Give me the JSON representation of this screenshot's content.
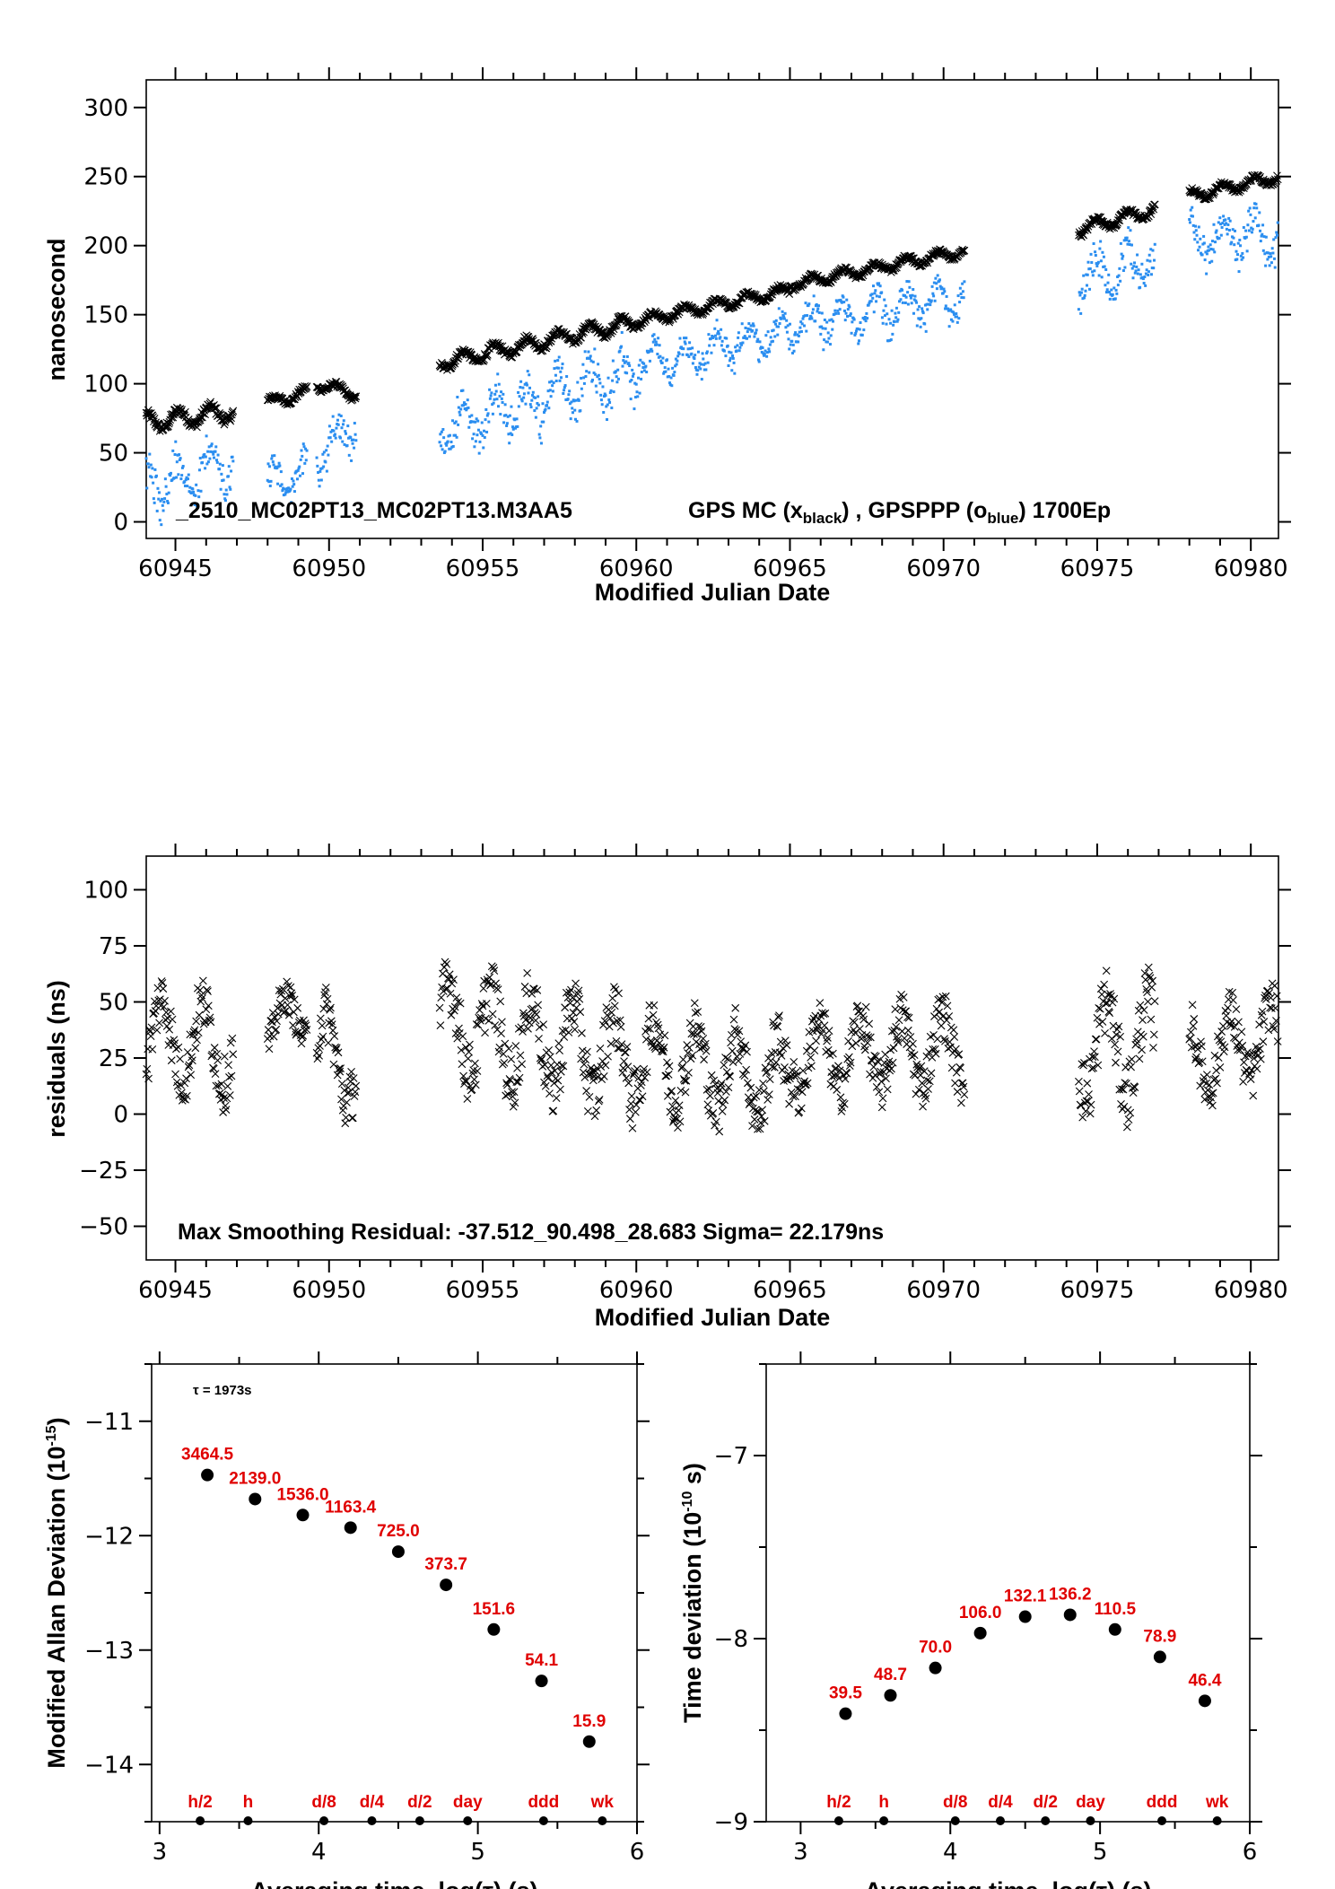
{
  "chart_data": [
    {
      "type": "scatter",
      "title": "",
      "xlabel": "Modified Julian Date",
      "ylabel": "nanosecond",
      "xlim": [
        60944.05,
        60980.9
      ],
      "ylim": [
        -12,
        320
      ],
      "xticks": [
        60945,
        60950,
        60955,
        60960,
        60965,
        60970,
        60975,
        60980
      ],
      "yticks": [
        0,
        50,
        100,
        150,
        200,
        250,
        300
      ],
      "annotation": {
        "main": "_2510_MC02PT13_MC02PT13.M3AA5",
        "legend_a": "GPS MC (x",
        "legend_a_sub": "black",
        "legend_mid": ") ,  GPSPPP (o",
        "legend_b_sub": "blue",
        "legend_end": ")  1700Ep"
      },
      "series": [
        {
          "name": "GPS MC",
          "marker": "x",
          "color": "#000000",
          "segments": [
            {
              "x0": 60944.05,
              "x1": 60946.9,
              "y0": 72,
              "y1": 80,
              "spread": 10
            },
            {
              "x0": 60948.0,
              "x1": 60949.3,
              "y0": 86,
              "y1": 94,
              "spread": 6
            },
            {
              "x0": 60949.6,
              "x1": 60950.9,
              "y0": 100,
              "y1": 92,
              "spread": 6
            },
            {
              "x0": 60953.6,
              "x1": 60960.0,
              "y0": 115,
              "y1": 145,
              "spread": 8
            },
            {
              "x0": 60960.0,
              "x1": 60965.0,
              "y0": 145,
              "y1": 168,
              "spread": 6
            },
            {
              "x0": 60965.0,
              "x1": 60970.7,
              "y0": 172,
              "y1": 196,
              "spread": 6
            },
            {
              "x0": 60974.4,
              "x1": 60976.9,
              "y0": 212,
              "y1": 226,
              "spread": 7
            },
            {
              "x0": 60978.0,
              "x1": 60980.9,
              "y0": 236,
              "y1": 250,
              "spread": 6
            }
          ]
        },
        {
          "name": "GPSPPP",
          "marker": "o",
          "color": "#2b8ef0",
          "segments": [
            {
              "x0": 60944.05,
              "x1": 60946.9,
              "y0": 35,
              "y1": 55,
              "spread": 25
            },
            {
              "x0": 60948.0,
              "x1": 60949.3,
              "y0": 35,
              "y1": 45,
              "spread": 18
            },
            {
              "x0": 60949.6,
              "x1": 60950.9,
              "y0": 55,
              "y1": 80,
              "spread": 20
            },
            {
              "x0": 60953.6,
              "x1": 60960.0,
              "y0": 75,
              "y1": 120,
              "spread": 25
            },
            {
              "x0": 60960.0,
              "x1": 60965.0,
              "y0": 120,
              "y1": 145,
              "spread": 18
            },
            {
              "x0": 60965.0,
              "x1": 60970.7,
              "y0": 150,
              "y1": 170,
              "spread": 20
            },
            {
              "x0": 60974.4,
              "x1": 60976.9,
              "y0": 185,
              "y1": 200,
              "spread": 25
            },
            {
              "x0": 60978.0,
              "x1": 60980.9,
              "y0": 215,
              "y1": 215,
              "spread": 22
            }
          ]
        }
      ]
    },
    {
      "type": "scatter",
      "title": "",
      "xlabel": "Modified Julian Date",
      "ylabel": "residuals (ns)",
      "xlim": [
        60944.05,
        60980.9
      ],
      "ylim": [
        -65,
        115
      ],
      "xticks": [
        60945,
        60950,
        60955,
        60960,
        60965,
        60970,
        60975,
        60980
      ],
      "yticks": [
        -50,
        -25,
        0,
        25,
        50,
        75,
        100
      ],
      "annotation": "Max Smoothing Residual: -37.512_90.498_28.683  Sigma= 22.179ns",
      "series": [
        {
          "name": "residuals",
          "marker": "x",
          "color": "#000000",
          "segments": [
            {
              "x0": 60944.05,
              "x1": 60946.9,
              "y0": 35,
              "y1": 30,
              "spread": 25
            },
            {
              "x0": 60948.0,
              "x1": 60949.3,
              "y0": 40,
              "y1": 45,
              "spread": 15
            },
            {
              "x0": 60949.6,
              "x1": 60950.9,
              "y0": 30,
              "y1": 20,
              "spread": 25
            },
            {
              "x0": 60953.6,
              "x1": 60960.0,
              "y0": 40,
              "y1": 25,
              "spread": 28
            },
            {
              "x0": 60960.0,
              "x1": 60965.0,
              "y0": 25,
              "y1": 15,
              "spread": 25
            },
            {
              "x0": 60965.0,
              "x1": 60970.7,
              "y0": 25,
              "y1": 30,
              "spread": 22
            },
            {
              "x0": 60974.4,
              "x1": 60976.9,
              "y0": 30,
              "y1": 30,
              "spread": 30
            },
            {
              "x0": 60978.0,
              "x1": 60980.9,
              "y0": 25,
              "y1": 35,
              "spread": 22
            }
          ]
        }
      ]
    },
    {
      "type": "scatter",
      "title": "",
      "xlabel": "Averaging time, log(τ) (s)",
      "ylabel": "Modified Allan Deviation (10",
      "ylabel_sup": "-15",
      "ylabel_end": ")",
      "xlim": [
        2.95,
        6.0
      ],
      "ylim": [
        -14.5,
        -10.5
      ],
      "xticks": [
        3,
        4,
        5,
        6
      ],
      "yticks": [
        -14,
        -13,
        -12,
        -11
      ],
      "note": "τ = 1973s",
      "x": [
        3.3,
        3.6,
        3.9,
        4.2,
        4.5,
        4.8,
        5.1,
        5.4,
        5.7
      ],
      "y": [
        -11.47,
        -11.68,
        -11.82,
        -11.93,
        -12.14,
        -12.43,
        -12.82,
        -13.27,
        -13.8
      ],
      "point_labels": [
        "3464.5",
        "2139.0",
        "1536.0",
        "1163.4",
        "725.0",
        "373.7",
        "151.6",
        "54.1",
        "15.9"
      ],
      "markers": [
        {
          "label": "h/2",
          "x": 3.255
        },
        {
          "label": "h",
          "x": 3.556
        },
        {
          "label": "d/8",
          "x": 4.033
        },
        {
          "label": "d/4",
          "x": 4.334
        },
        {
          "label": "d/2",
          "x": 4.635
        },
        {
          "label": "day",
          "x": 4.936
        },
        {
          "label": "ddd",
          "x": 5.413
        },
        {
          "label": "wk",
          "x": 5.782
        }
      ]
    },
    {
      "type": "scatter",
      "title": "",
      "xlabel": "Averaging time, log(τ) (s)",
      "ylabel": "Time deviation (10",
      "ylabel_sup": "-10",
      "ylabel_end": " s)",
      "xlim": [
        2.77,
        6.0
      ],
      "ylim": [
        -9.0,
        -6.5
      ],
      "xticks": [
        3,
        4,
        5,
        6
      ],
      "yticks": [
        -9,
        -8,
        -7
      ],
      "x": [
        3.3,
        3.6,
        3.9,
        4.2,
        4.5,
        4.8,
        5.1,
        5.4,
        5.7
      ],
      "y": [
        -8.41,
        -8.31,
        -8.16,
        -7.97,
        -7.88,
        -7.87,
        -7.95,
        -8.1,
        -8.34
      ],
      "point_labels": [
        "39.5",
        "48.7",
        "70.0",
        "106.0",
        "132.1",
        "136.2",
        "110.5",
        "78.9",
        "46.4"
      ],
      "markers": [
        {
          "label": "h/2",
          "x": 3.255
        },
        {
          "label": "h",
          "x": 3.556
        },
        {
          "label": "d/8",
          "x": 4.033
        },
        {
          "label": "d/4",
          "x": 4.334
        },
        {
          "label": "d/2",
          "x": 4.635
        },
        {
          "label": "day",
          "x": 4.936
        },
        {
          "label": "ddd",
          "x": 5.413
        },
        {
          "label": "wk",
          "x": 5.782
        }
      ]
    }
  ]
}
